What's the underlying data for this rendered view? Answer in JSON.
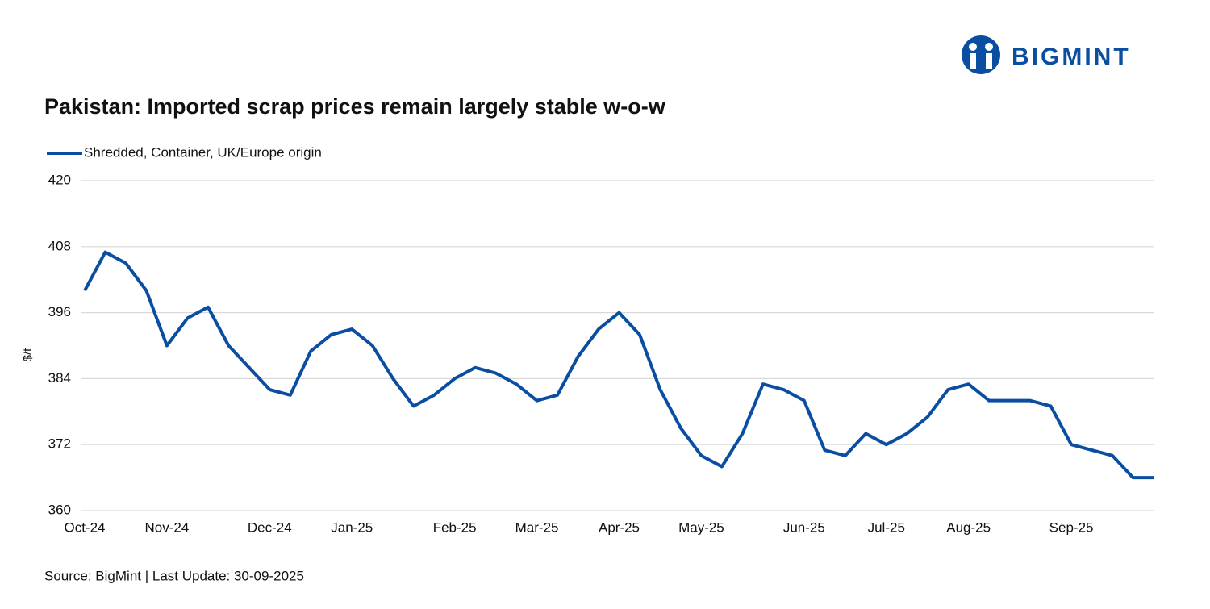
{
  "brand": "BIGMINT",
  "chart_data": {
    "type": "line",
    "title": "Pakistan: Imported scrap prices remain largely stable w-o-w",
    "y_label": "$/t",
    "source": "Source: BigMint | Last Update: 30-09-2025",
    "categories": [
      "Oct-24",
      null,
      null,
      null,
      "Nov-24",
      null,
      null,
      null,
      null,
      "Dec-24",
      null,
      null,
      null,
      "Jan-25",
      null,
      null,
      null,
      null,
      "Feb-25",
      null,
      null,
      null,
      "Mar-25",
      null,
      null,
      null,
      "Apr-25",
      null,
      null,
      null,
      "May-25",
      null,
      null,
      null,
      null,
      "Jun-25",
      null,
      null,
      null,
      "Jul-25",
      null,
      null,
      null,
      "Aug-25",
      null,
      null,
      null,
      null,
      "Sep-25",
      null,
      null,
      null,
      null
    ],
    "series": [
      {
        "name": "Shredded, Container, UK/Europe origin",
        "color": "#0a4ea2",
        "values": [
          400,
          407,
          405,
          400,
          390,
          395,
          397,
          390,
          386,
          382,
          381,
          389,
          392,
          393,
          390,
          384,
          379,
          381,
          384,
          386,
          385,
          383,
          380,
          381,
          388,
          393,
          396,
          392,
          382,
          375,
          370,
          368,
          374,
          383,
          382,
          380,
          371,
          370,
          374,
          372,
          374,
          377,
          382,
          383,
          380,
          380,
          380,
          379,
          372,
          371,
          370,
          366,
          366
        ]
      }
    ],
    "ylim": [
      360,
      420
    ],
    "yticks": [
      360,
      372,
      384,
      396,
      408,
      420
    ],
    "grid": true,
    "legend": "top-left"
  }
}
